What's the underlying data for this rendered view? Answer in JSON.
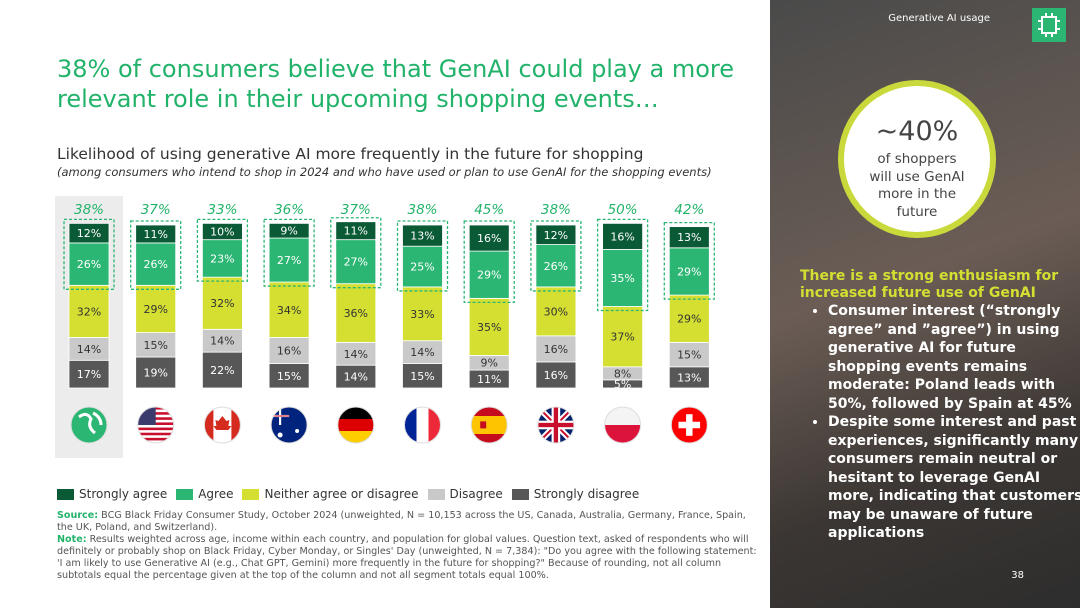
{
  "header": {
    "title": "38% of consumers believe that GenAI could play a more relevant role in their upcoming shopping events…"
  },
  "chart_data": {
    "type": "bar",
    "stacked": true,
    "title": "Likelihood of using generative AI more frequently in the future for shopping",
    "subtitle": "(among consumers who intend to shop in 2024 and who have used or plan to use GenAI for the shopping events)",
    "categories": [
      null,
      null,
      null,
      null,
      null,
      null,
      null,
      null,
      null,
      null
    ],
    "series": [
      {
        "name": "Strongly agree",
        "color": "#0b5a36",
        "values": [
          12,
          11,
          10,
          9,
          11,
          13,
          16,
          12,
          16,
          13
        ],
        "value_labels": [
          "12%",
          "11%",
          "10%",
          "9%",
          "11%",
          "13%",
          "16%",
          "12%",
          "16%",
          "13%"
        ]
      },
      {
        "name": "Agree",
        "color": "#2cb673",
        "values": [
          26,
          26,
          23,
          27,
          27,
          25,
          29,
          26,
          35,
          29
        ],
        "value_labels": [
          "26%",
          "26%",
          "23%",
          "27%",
          "27%",
          "25%",
          "29%",
          "26%",
          "35%",
          "29%"
        ]
      },
      {
        "name": "Neither agree or disagree",
        "color": "#d4df32",
        "values": [
          32,
          29,
          32,
          34,
          36,
          33,
          35,
          30,
          37,
          29
        ],
        "value_labels": [
          "32%",
          "29%",
          "32%",
          "34%",
          "36%",
          "33%",
          "35%",
          "30%",
          "37%",
          "29%"
        ]
      },
      {
        "name": "Disagree",
        "color": "#c9c9c9",
        "values": [
          14,
          15,
          14,
          16,
          14,
          14,
          9,
          16,
          8,
          15
        ],
        "value_labels": [
          "14%",
          "15%",
          "14%",
          "16%",
          "14%",
          "14%",
          "9%",
          "16%",
          "8%",
          "15%"
        ]
      },
      {
        "name": "Strongly disagree",
        "color": "#575757",
        "values": [
          17,
          19,
          22,
          15,
          14,
          15,
          11,
          16,
          5,
          13
        ],
        "value_labels": [
          "17%",
          "19%",
          "22%",
          "15%",
          "14%",
          "15%",
          "11%",
          "16%",
          "5%",
          "13%"
        ]
      }
    ],
    "subtotals": [
      38,
      37,
      33,
      36,
      37,
      38,
      45,
      38,
      50,
      42
    ],
    "subtotal_labels": [
      "38%",
      "37%",
      "33%",
      "36%",
      "37%",
      "38%",
      "45%",
      "38%",
      "50%",
      "42%"
    ]
  },
  "notes": {
    "source_label": "Source:",
    "source": "BCG Black Friday Consumer Study, October 2024 (unweighted, N = 10,153 across the US, Canada, Australia, Germany, France, Spain, the UK, Poland, and Switzerland).",
    "note_label": "Note:",
    "note": "Results weighted across age, income within each country, and population for global values. Question text, asked of respondents who will definitely or probably shop on Black Friday, Cyber Monday, or Singles' Day (unweighted, N = 7,384): \"Do you agree with the following statement: 'I am likely to use Generative AI (e.g., Chat GPT, Gemini) more frequently in the future for shopping?\" Because of rounding, not all column subtotals equal the percentage given at the top of the column and not all segment totals equal 100%."
  },
  "sidebar": {
    "tag": "Generative AI usage",
    "stat": "~40%",
    "stat_text": "of shoppers will use GenAI more in the future",
    "heading": "There is a strong enthusiasm for increased future use of GenAI",
    "bullets": [
      "Consumer interest (“strongly agree” and ”agree”) in using generative AI for future shopping events remains moderate: Poland leads with 50%, followed by Spain at 45%",
      "Despite some interest and past experiences, significantly many consumers remain neutral or hesitant to leverage GenAI more, indicating that customers may be unaware of future applications"
    ]
  },
  "page_number": "38"
}
